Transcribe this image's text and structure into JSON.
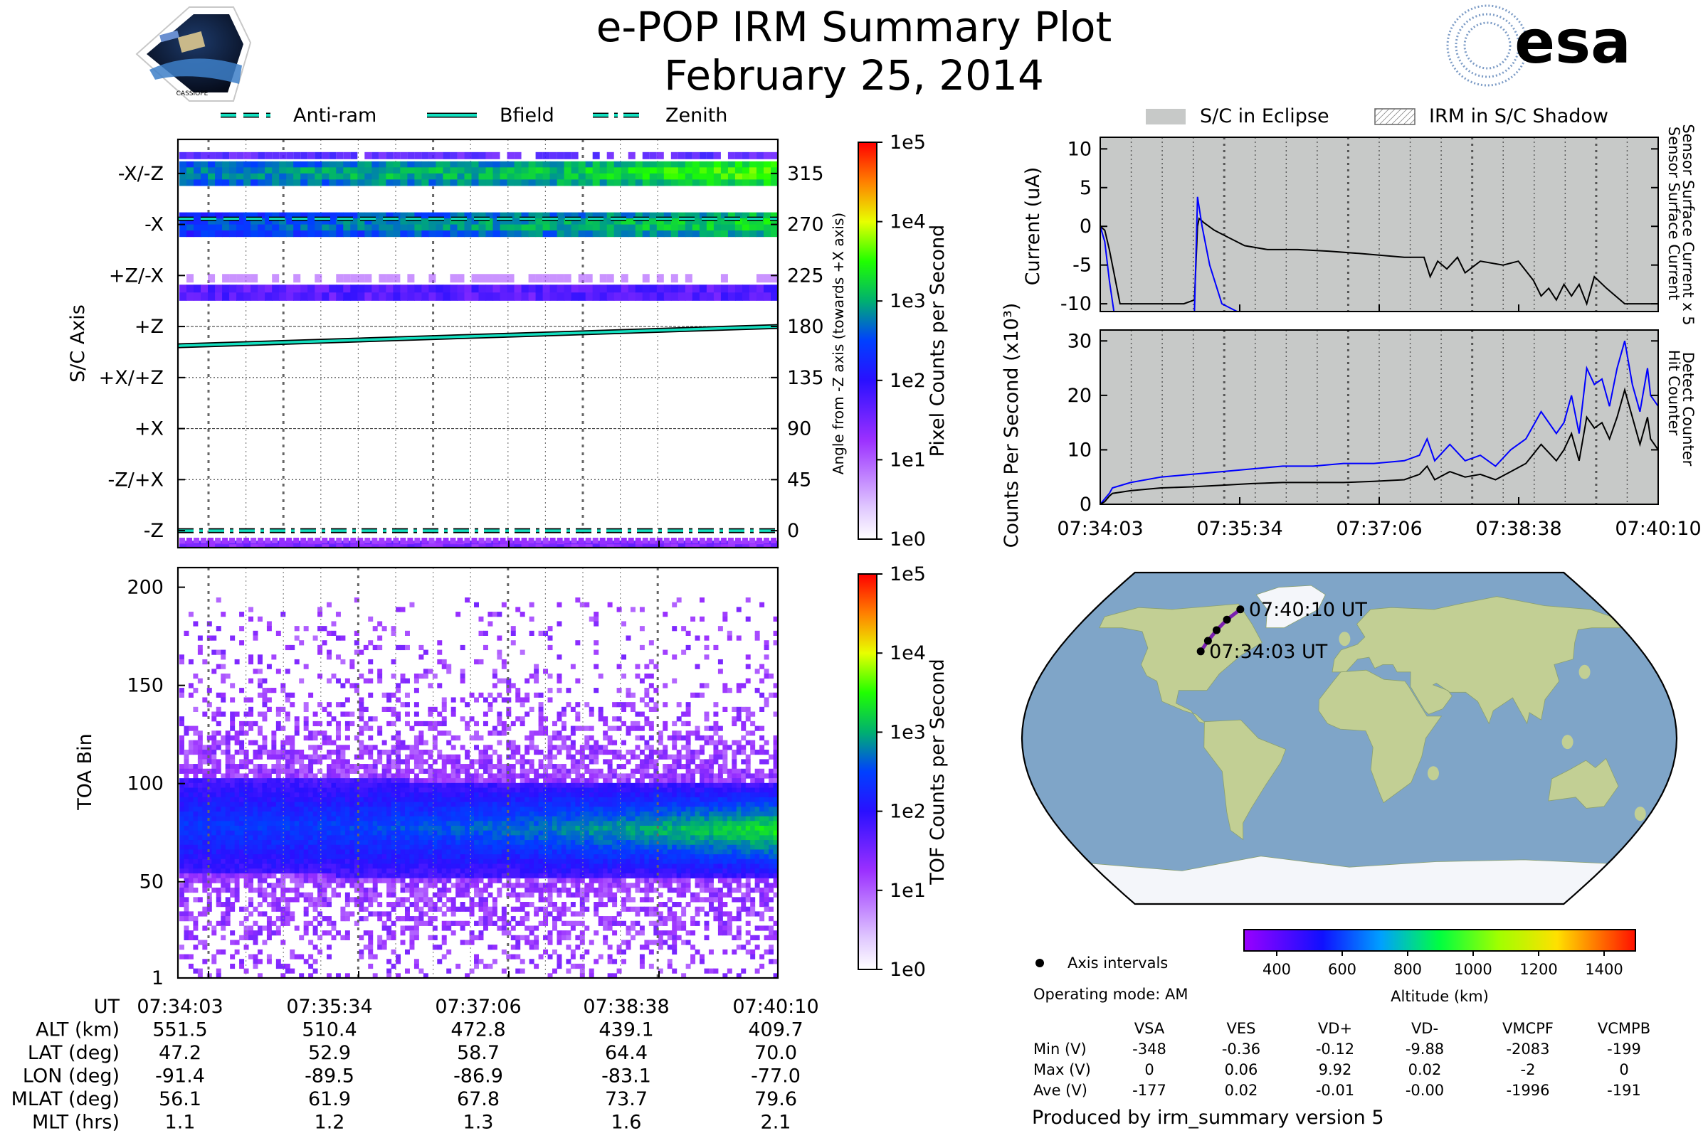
{
  "header": {
    "title": "e-POP IRM Summary Plot",
    "date": "February 25, 2014",
    "mission_logo_text": "CASSIOPE",
    "agency_logo_text": "esa"
  },
  "colors": {
    "line_cyan": "#13e0c0",
    "series_blue": "#0000ff",
    "eclipse_gray": "#c7c9c8",
    "ocean": "#7fa5c8",
    "land": "#c2cf94",
    "ice": "#f4f6fa"
  },
  "chart_data": [
    {
      "id": "sc_axis",
      "type": "heatmap",
      "title": "",
      "legend": [
        {
          "label": "Anti-ram",
          "style": "dashed"
        },
        {
          "label": "Bfield",
          "style": "solid"
        },
        {
          "label": "Zenith",
          "style": "dashdot"
        }
      ],
      "y_categories": [
        "-X/-Z",
        "-X",
        "+Z/-X",
        "+Z",
        "+X/+Z",
        "+X",
        "-Z/+X",
        "-Z"
      ],
      "y2_ticks": [
        315,
        270,
        225,
        180,
        135,
        90,
        45,
        0
      ],
      "ylabel": "S/C Axis",
      "y2label": "Angle from -Z axis (towards +X axis)",
      "ylim": [
        -15,
        345
      ],
      "x_ticks": [
        "07:34:03",
        "07:35:34",
        "07:37:06",
        "07:38:38",
        "07:40:10"
      ],
      "bands": [
        {
          "angle": 315,
          "intensity": [
            0.45,
            0.5,
            0.55,
            0.55,
            0.6,
            0.7,
            0.75
          ]
        },
        {
          "angle": 270,
          "intensity": [
            0.35,
            0.4,
            0.45,
            0.5,
            0.55,
            0.6,
            0.65
          ]
        },
        {
          "angle": 210,
          "intensity": [
            0.15,
            0.15,
            0.15,
            0.15,
            0.15,
            0.15,
            0.15
          ]
        },
        {
          "angle": -12,
          "intensity": [
            0.05,
            0.05,
            0.05,
            0.05,
            0.05,
            0.05,
            0.05
          ]
        }
      ],
      "bfield_angle": [
        163,
        180
      ],
      "antiram_angle": 275,
      "zenith_angle": 0,
      "colorbar": {
        "label": "Pixel Counts per Second",
        "ticks": [
          "1e0",
          "1e1",
          "1e2",
          "1e3",
          "1e4",
          "1e5"
        ]
      }
    },
    {
      "id": "tof",
      "type": "heatmap",
      "ylabel": "TOA Bin",
      "ylim": [
        1,
        210
      ],
      "y_ticks": [
        1,
        50,
        100,
        150,
        200
      ],
      "x_ticks": [
        "07:34:03",
        "07:35:34",
        "07:37:06",
        "07:38:38",
        "07:40:10"
      ],
      "core_center_bin": [
        80,
        78
      ],
      "core_halfwidth_bins": 25,
      "colorbar": {
        "label": "TOF Counts per Second",
        "ticks": [
          "1e0",
          "1e1",
          "1e2",
          "1e3",
          "1e4",
          "1e5"
        ]
      }
    },
    {
      "id": "current",
      "type": "line",
      "ylabel": "Current (uA)",
      "ylim": [
        -11,
        11.5
      ],
      "y_ticks": [
        -10,
        -5,
        0,
        5,
        10
      ],
      "xlim": [
        0,
        367
      ],
      "x_ticks": [
        "07:34:03",
        "07:35:34",
        "07:37:06",
        "07:38:38",
        "07:40:10"
      ],
      "right_labels": [
        "Sensor Surface Current x 5",
        "Sensor Surface Current"
      ],
      "series": [
        {
          "name": "Sensor Surface Current",
          "color": "black",
          "x": [
            0,
            3,
            6,
            10,
            13,
            17,
            20,
            22,
            30,
            40,
            55,
            62,
            64,
            65,
            68,
            75,
            85,
            95,
            110,
            130,
            150,
            170,
            200,
            213,
            217,
            222,
            228,
            235,
            240,
            250,
            265,
            275,
            285,
            290,
            295,
            300,
            305,
            310,
            315,
            320,
            325,
            333,
            345,
            355,
            367
          ],
          "y": [
            0,
            -0.5,
            -3,
            -7,
            -10,
            -10,
            -10,
            -10,
            -10,
            -10,
            -10,
            -9.5,
            0,
            1,
            0.5,
            -0.5,
            -1.5,
            -2.5,
            -3,
            -3,
            -3.2,
            -3.5,
            -4,
            -4,
            -6.5,
            -4.5,
            -5.5,
            -4,
            -6,
            -4.5,
            -5,
            -4.5,
            -7,
            -9,
            -8,
            -9.5,
            -7.5,
            -9,
            -7.5,
            -10,
            -6.5,
            -8,
            -10,
            -10,
            -10
          ]
        },
        {
          "name": "Sensor Surface Current x 5",
          "color": "blue",
          "x": [
            0,
            3,
            6,
            9,
            10.5,
            62,
            64,
            67,
            72,
            80,
            90
          ],
          "y": [
            0,
            -2,
            -7,
            -11,
            -11,
            -11,
            3.8,
            0,
            -5,
            -10,
            -11
          ]
        }
      ],
      "eclipse_shading": true
    },
    {
      "id": "counts",
      "type": "line",
      "ylabel": "Counts Per Second (x10³)",
      "ylim": [
        0,
        32
      ],
      "y_ticks": [
        0,
        10,
        20,
        30
      ],
      "xlim": [
        0,
        367
      ],
      "x_ticks": [
        "07:34:03",
        "07:35:34",
        "07:37:06",
        "07:38:38",
        "07:40:10"
      ],
      "right_labels": [
        "Detect Counter",
        "Hit Counter"
      ],
      "series": [
        {
          "name": "Detect Counter",
          "color": "blue",
          "x": [
            0,
            3,
            6,
            8,
            20,
            40,
            60,
            80,
            100,
            120,
            140,
            160,
            180,
            200,
            210,
            215,
            220,
            230,
            240,
            250,
            260,
            270,
            280,
            290,
            300,
            305,
            310,
            315,
            320,
            325,
            330,
            335,
            340,
            345,
            350,
            355,
            360,
            362,
            367
          ],
          "y": [
            0,
            1,
            2,
            3,
            4,
            5,
            5.5,
            6,
            6.5,
            7,
            7,
            7.5,
            7.5,
            8,
            9,
            12,
            8,
            11,
            8,
            9,
            7,
            10,
            12,
            17,
            13,
            15,
            20,
            13,
            25,
            22,
            23,
            18,
            25,
            30,
            22,
            17,
            25,
            20,
            18
          ]
        },
        {
          "name": "Hit Counter",
          "color": "black",
          "x": [
            0,
            3,
            6,
            8,
            20,
            40,
            60,
            80,
            100,
            120,
            140,
            160,
            180,
            200,
            210,
            215,
            220,
            230,
            240,
            250,
            260,
            270,
            280,
            290,
            300,
            305,
            310,
            315,
            320,
            325,
            330,
            335,
            340,
            345,
            350,
            355,
            360,
            362,
            367
          ],
          "y": [
            0,
            0.5,
            1.5,
            2,
            2.5,
            3,
            3.2,
            3.5,
            3.8,
            4,
            4,
            4,
            4.2,
            4.5,
            5.5,
            7,
            4.5,
            6,
            5,
            5.5,
            4.5,
            6,
            7.5,
            11,
            8,
            10,
            13,
            8,
            16,
            14,
            15,
            12,
            16,
            21,
            16,
            11,
            16,
            12,
            10
          ]
        }
      ],
      "eclipse_shading": true
    }
  ],
  "chart_legend": {
    "eclipse": "S/C in Eclipse",
    "shadow": "IRM in S/C Shadow"
  },
  "map": {
    "start_label": "07:34:03 UT",
    "end_label": "07:40:10 UT",
    "track_lonlat": [
      [
        -91.4,
        47.2
      ],
      [
        -89.5,
        52.9
      ],
      [
        -86.9,
        58.7
      ],
      [
        -83.1,
        64.4
      ],
      [
        -77.0,
        70.0
      ]
    ]
  },
  "altitude_colorbar": {
    "ticks": [
      "400",
      "600",
      "800",
      "1000",
      "1200",
      "1400"
    ],
    "label": "Altitude (km)"
  },
  "info": {
    "axis_intervals": "Axis intervals",
    "operating_mode": "Operating mode: AM",
    "produced_by": "Produced by irm_summary version 5"
  },
  "voltage_table": {
    "columns": [
      "VSA",
      "VES",
      "VD+",
      "VD-",
      "VMCPF",
      "VCMPB"
    ],
    "rows": [
      {
        "label": "Min (V)",
        "values": [
          "-348",
          "-0.36",
          "-0.12",
          "-9.88",
          "-2083",
          "-199"
        ]
      },
      {
        "label": "Max (V)",
        "values": [
          "0",
          "0.06",
          "9.92",
          "0.02",
          "-2",
          "0"
        ]
      },
      {
        "label": "Ave (V)",
        "values": [
          "-177",
          "0.02",
          "-0.01",
          "-0.00",
          "-1996",
          "-191"
        ]
      }
    ]
  },
  "ephemeris": {
    "rows": [
      {
        "label": "UT",
        "values": [
          "07:34:03",
          "07:35:34",
          "07:37:06",
          "07:38:38",
          "07:40:10"
        ]
      },
      {
        "label": "ALT (km)",
        "values": [
          "551.5",
          "510.4",
          "472.8",
          "439.1",
          "409.7"
        ]
      },
      {
        "label": "LAT (deg)",
        "values": [
          "47.2",
          "52.9",
          "58.7",
          "64.4",
          "70.0"
        ]
      },
      {
        "label": "LON (deg)",
        "values": [
          "-91.4",
          "-89.5",
          "-86.9",
          "-83.1",
          "-77.0"
        ]
      },
      {
        "label": "MLAT (deg)",
        "values": [
          "56.1",
          "61.9",
          "67.8",
          "73.7",
          "79.6"
        ]
      },
      {
        "label": "MLT (hrs)",
        "values": [
          "1.1",
          "1.2",
          "1.3",
          "1.6",
          "2.1"
        ]
      }
    ]
  }
}
